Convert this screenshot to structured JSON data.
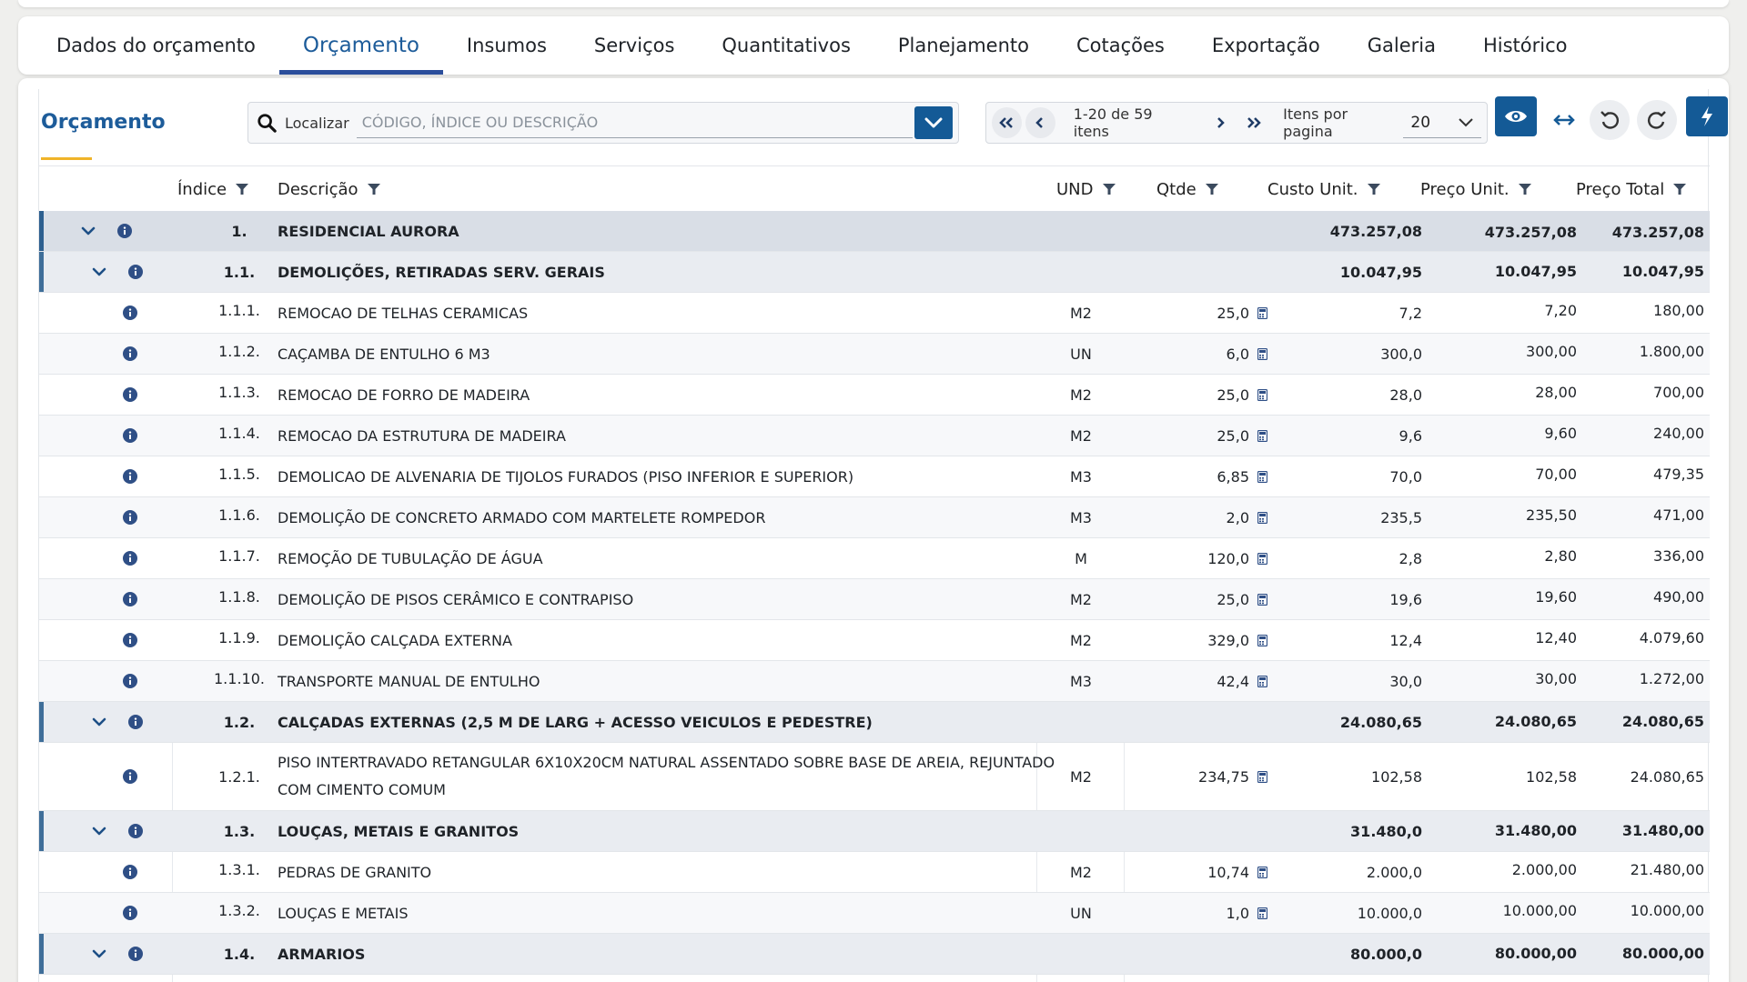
{
  "tabs": [
    {
      "label": "Dados do orçamento",
      "active": false
    },
    {
      "label": "Orçamento",
      "active": true
    },
    {
      "label": "Insumos",
      "active": false
    },
    {
      "label": "Serviços",
      "active": false
    },
    {
      "label": "Quantitativos",
      "active": false
    },
    {
      "label": "Planejamento",
      "active": false
    },
    {
      "label": "Cotações",
      "active": false
    },
    {
      "label": "Exportação",
      "active": false
    },
    {
      "label": "Galeria",
      "active": false
    },
    {
      "label": "Histórico",
      "active": false
    }
  ],
  "section": {
    "title": "Orçamento"
  },
  "search": {
    "label": "Localizar",
    "placeholder": "CÓDIGO, ÍNDICE OU DESCRIÇÃO"
  },
  "pager": {
    "range_text": "1-20 de 59 itens",
    "per_page_label": "Itens por pagina",
    "per_page_value": "20"
  },
  "columns": {
    "indice": "Índice",
    "descricao": "Descrição",
    "und": "UND",
    "qtde": "Qtde",
    "custo_unit": "Custo Unit.",
    "preco_unit": "Preço Unit.",
    "preco_total": "Preço Total"
  },
  "colors": {
    "accent": "#145a96",
    "tab_underline": "#2b4e9b",
    "title_underline": "#f0b429"
  },
  "rows": [
    {
      "level": 0,
      "type": "group",
      "idx": "1.",
      "desc": "RESIDENCIAL AURORA",
      "und": "",
      "qtde": "",
      "cu": "473.257,08",
      "pu": "473.257,08",
      "pt": "473.257,08"
    },
    {
      "level": 1,
      "type": "group",
      "idx": "1.1.",
      "desc": "DEMOLIÇÕES, RETIRADAS SERV. GERAIS",
      "und": "",
      "qtde": "",
      "cu": "10.047,95",
      "pu": "10.047,95",
      "pt": "10.047,95"
    },
    {
      "level": 2,
      "type": "item",
      "idx": "1.1.1.",
      "desc": "REMOCAO DE TELHAS CERAMICAS",
      "und": "M2",
      "qtde": "25,0",
      "cu": "7,2",
      "pu": "7,20",
      "pt": "180,00"
    },
    {
      "level": 2,
      "type": "item",
      "idx": "1.1.2.",
      "desc": "CAÇAMBA DE ENTULHO 6 M3",
      "und": "UN",
      "qtde": "6,0",
      "cu": "300,0",
      "pu": "300,00",
      "pt": "1.800,00"
    },
    {
      "level": 2,
      "type": "item",
      "idx": "1.1.3.",
      "desc": "REMOCAO DE FORRO DE MADEIRA",
      "und": "M2",
      "qtde": "25,0",
      "cu": "28,0",
      "pu": "28,00",
      "pt": "700,00"
    },
    {
      "level": 2,
      "type": "item",
      "idx": "1.1.4.",
      "desc": "REMOCAO DA ESTRUTURA DE MADEIRA",
      "und": "M2",
      "qtde": "25,0",
      "cu": "9,6",
      "pu": "9,60",
      "pt": "240,00"
    },
    {
      "level": 2,
      "type": "item",
      "idx": "1.1.5.",
      "desc": "DEMOLICAO DE ALVENARIA DE TIJOLOS FURADOS (PISO INFERIOR E SUPERIOR)",
      "und": "M3",
      "qtde": "6,85",
      "cu": "70,0",
      "pu": "70,00",
      "pt": "479,35"
    },
    {
      "level": 2,
      "type": "item",
      "idx": "1.1.6.",
      "desc": "DEMOLIÇÃO DE CONCRETO ARMADO COM MARTELETE ROMPEDOR",
      "und": "M3",
      "qtde": "2,0",
      "cu": "235,5",
      "pu": "235,50",
      "pt": "471,00"
    },
    {
      "level": 2,
      "type": "item",
      "idx": "1.1.7.",
      "desc": "REMOÇÃO DE TUBULAÇÃO DE ÁGUA",
      "und": "M",
      "qtde": "120,0",
      "cu": "2,8",
      "pu": "2,80",
      "pt": "336,00"
    },
    {
      "level": 2,
      "type": "item",
      "idx": "1.1.8.",
      "desc": "DEMOLIÇÃO DE PISOS CERÂMICO E CONTRAPISO",
      "und": "M2",
      "qtde": "25,0",
      "cu": "19,6",
      "pu": "19,60",
      "pt": "490,00"
    },
    {
      "level": 2,
      "type": "item",
      "idx": "1.1.9.",
      "desc": "DEMOLIÇÃO CALÇADA EXTERNA",
      "und": "M2",
      "qtde": "329,0",
      "cu": "12,4",
      "pu": "12,40",
      "pt": "4.079,60"
    },
    {
      "level": 2,
      "type": "item",
      "idx": "1.1.10.",
      "desc": "TRANSPORTE MANUAL DE ENTULHO",
      "und": "M3",
      "qtde": "42,4",
      "cu": "30,0",
      "pu": "30,00",
      "pt": "1.272,00"
    },
    {
      "level": 1,
      "type": "group",
      "idx": "1.2.",
      "desc": "CALÇADAS EXTERNAS (2,5 M DE LARG + ACESSO VEICULOS E PEDESTRE)",
      "und": "",
      "qtde": "",
      "cu": "24.080,65",
      "pu": "24.080,65",
      "pt": "24.080,65"
    },
    {
      "level": 2,
      "type": "item",
      "tall": true,
      "idx": "1.2.1.",
      "desc": "PISO INTERTRAVADO RETANGULAR 6X10X20CM NATURAL ASSENTADO SOBRE BASE DE AREIA, REJUNTADO COM CIMENTO COMUM",
      "und": "M2",
      "qtde": "234,75",
      "cu": "102,58",
      "pu": "102,58",
      "pt": "24.080,65"
    },
    {
      "level": 1,
      "type": "group",
      "idx": "1.3.",
      "desc": "LOUÇAS, METAIS E GRANITOS",
      "und": "",
      "qtde": "",
      "cu": "31.480,0",
      "pu": "31.480,00",
      "pt": "31.480,00"
    },
    {
      "level": 2,
      "type": "item",
      "idx": "1.3.1.",
      "desc": "PEDRAS DE GRANITO",
      "und": "M2",
      "qtde": "10,74",
      "cu": "2.000,0",
      "pu": "2.000,00",
      "pt": "21.480,00"
    },
    {
      "level": 2,
      "type": "item",
      "idx": "1.3.2.",
      "desc": "LOUÇAS E METAIS",
      "und": "UN",
      "qtde": "1,0",
      "cu": "10.000,0",
      "pu": "10.000,00",
      "pt": "10.000,00"
    },
    {
      "level": 1,
      "type": "group",
      "idx": "1.4.",
      "desc": "ARMARIOS",
      "und": "",
      "qtde": "",
      "cu": "80.000,0",
      "pu": "80.000,00",
      "pt": "80.000,00"
    }
  ]
}
